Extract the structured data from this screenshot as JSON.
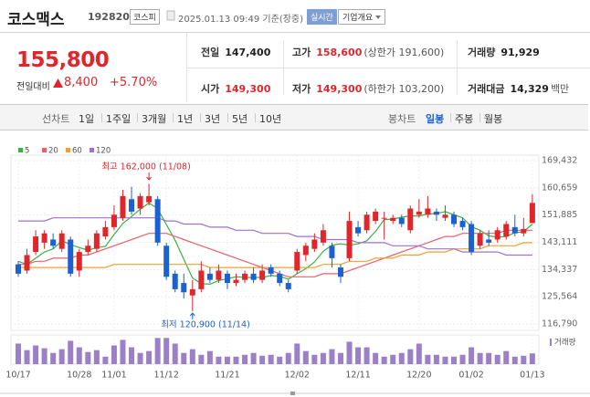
{
  "header": {
    "name": "코스맥스",
    "code": "192820",
    "market": "코스피",
    "timestamp": "2025.01.13 09:49 기준(장중)",
    "realtime": "실시간",
    "company_info": "기업개요"
  },
  "quote": {
    "price": "155,800",
    "change_label": "전일대비",
    "change": "8,400",
    "change_rate": "+5.70%"
  },
  "stats": {
    "rows": [
      [
        {
          "label": "전일",
          "value": "147,400"
        },
        {
          "label": "고가",
          "value": "158,600",
          "note": "(상한가 191,600)",
          "color": "#e0252b"
        },
        {
          "label": "거래량",
          "value": "91,929"
        }
      ],
      [
        {
          "label": "시가",
          "value": "149,300",
          "color": "#e0252b"
        },
        {
          "label": "저가",
          "value": "149,300",
          "note": "(하한가 103,200)",
          "color": "#e0252b"
        },
        {
          "label": "거래대금",
          "value": "14,329",
          "note": "백만"
        }
      ]
    ]
  },
  "tabs": {
    "line_chart": "선차트",
    "line_periods": [
      "1일",
      "1주일",
      "3개월",
      "1년",
      "3년",
      "5년",
      "10년"
    ],
    "candle_chart": "봉차트",
    "candle_periods": [
      "일봉",
      "주봉",
      "월봉"
    ],
    "active": "일봉"
  },
  "chart_data": {
    "type": "candlestick",
    "categories": [
      "10/17",
      null,
      null,
      null,
      null,
      null,
      null,
      "10/28",
      null,
      null,
      null,
      "11/01",
      null,
      null,
      null,
      null,
      null,
      "11/12",
      null,
      null,
      null,
      null,
      null,
      null,
      "11/21",
      null,
      null,
      null,
      null,
      null,
      null,
      null,
      "12/02",
      null,
      null,
      null,
      null,
      null,
      null,
      "12/11",
      null,
      null,
      null,
      null,
      null,
      null,
      "12/20",
      null,
      null,
      null,
      null,
      null,
      "01/02",
      null,
      null,
      null,
      null,
      null,
      null,
      "01/13"
    ],
    "open": [
      136000,
      134000,
      140000,
      143000,
      144000,
      141000,
      144000,
      134000,
      140000,
      141000,
      145000,
      148000,
      151000,
      157000,
      154000,
      156000,
      157000,
      142000,
      133000,
      130000,
      126000,
      128000,
      133000,
      131000,
      133000,
      130000,
      131000,
      133000,
      131000,
      135000,
      133000,
      130000,
      134000,
      139000,
      141000,
      143000,
      142000,
      135000,
      138000,
      148000,
      147000,
      150000,
      151000,
      150000,
      151000,
      147000,
      152000,
      152000,
      153000,
      151000,
      152000,
      150000,
      149000,
      142000,
      144000,
      144000,
      145000,
      148000,
      146000,
      149300
    ],
    "high": [
      137000,
      141000,
      147000,
      147000,
      146000,
      147000,
      145000,
      141000,
      144000,
      147000,
      150000,
      155000,
      160000,
      161000,
      159000,
      162000,
      158000,
      143000,
      134000,
      133000,
      131000,
      137000,
      135000,
      136000,
      134000,
      133000,
      134000,
      135000,
      136000,
      136000,
      134000,
      131000,
      141000,
      143000,
      146000,
      149000,
      143000,
      136000,
      153000,
      150000,
      153000,
      154000,
      153000,
      152000,
      152000,
      155000,
      157000,
      158000,
      154000,
      155000,
      153000,
      151000,
      150000,
      147000,
      147000,
      148000,
      150000,
      152000,
      151000,
      158600
    ],
    "low": [
      132000,
      133000,
      139000,
      141000,
      141000,
      140000,
      132000,
      132000,
      139000,
      140000,
      144000,
      147000,
      150000,
      152000,
      152000,
      155000,
      142000,
      131000,
      127000,
      125000,
      120900,
      127000,
      130000,
      130000,
      128000,
      129000,
      130000,
      130000,
      130000,
      132000,
      129000,
      127000,
      133000,
      137000,
      140000,
      142000,
      135000,
      130000,
      137000,
      145000,
      146000,
      149000,
      144000,
      149000,
      148000,
      146000,
      151000,
      151000,
      150000,
      150000,
      148000,
      147000,
      139000,
      141000,
      142000,
      143000,
      144000,
      145000,
      145000,
      149300
    ],
    "close": [
      133000,
      139000,
      145000,
      146000,
      142000,
      146000,
      133000,
      140000,
      142000,
      146000,
      148000,
      152000,
      158000,
      153000,
      158000,
      158000,
      143000,
      132000,
      128000,
      127000,
      128000,
      134000,
      131000,
      134000,
      130000,
      131000,
      133000,
      131000,
      134000,
      133000,
      130000,
      128000,
      140000,
      142000,
      144000,
      147000,
      138000,
      132000,
      150000,
      146000,
      152000,
      153000,
      151000,
      151000,
      149000,
      154000,
      153000,
      154000,
      152000,
      152000,
      149000,
      148000,
      140000,
      146000,
      143000,
      147000,
      149000,
      146000,
      147400,
      155800
    ],
    "up_color": "#e0252b",
    "down_color": "#1b61d1",
    "ylim": [
      116790,
      169432
    ],
    "yticks": [
      {
        "value": 116790,
        "label": "116,790"
      },
      {
        "value": 125564,
        "label": "125,564"
      },
      {
        "value": 134337,
        "label": "134,337"
      },
      {
        "value": 143111,
        "label": "143,111"
      },
      {
        "value": 151885,
        "label": "151,885"
      },
      {
        "value": 160659,
        "label": "160,659"
      },
      {
        "value": 169432,
        "label": "169,432"
      }
    ],
    "grid": true,
    "moving_averages": [
      {
        "name": "5",
        "color": "#3cb043",
        "values": [
          137000,
          136000,
          138000,
          140000,
          141000,
          143600,
          142400,
          141400,
          140600,
          141400,
          141800,
          145600,
          149200,
          151400,
          153800,
          155800,
          154000,
          148800,
          143800,
          137600,
          131600,
          129800,
          129600,
          130800,
          131400,
          132000,
          131800,
          131800,
          131800,
          132400,
          132200,
          131200,
          133000,
          134600,
          136800,
          140200,
          142200,
          142600,
          142200,
          142600,
          143600,
          146600,
          150400,
          150600,
          151200,
          151600,
          151600,
          152200,
          152400,
          153000,
          152000,
          151000,
          148200,
          147000,
          145200,
          144800,
          145000,
          146200,
          146500,
          149000
        ]
      },
      {
        "name": "20",
        "color": "#e8606a",
        "values": [
          136000,
          136000,
          137000,
          137000,
          138000,
          138000,
          138000,
          139000,
          139000,
          140000,
          141000,
          142000,
          143000,
          144000,
          145000,
          146000,
          146000,
          146000,
          145000,
          144000,
          143000,
          142000,
          141000,
          140000,
          139000,
          138000,
          137000,
          136000,
          135000,
          134000,
          133000,
          132000,
          132000,
          132000,
          132000,
          133000,
          133000,
          133000,
          134000,
          135000,
          136000,
          137000,
          138000,
          139000,
          140000,
          141000,
          142000,
          143000,
          144000,
          145000,
          145000,
          146000,
          146000,
          146000,
          146000,
          146000,
          147000,
          147000,
          147000,
          147000
        ]
      },
      {
        "name": "60",
        "color": "#f0a030",
        "values": [
          135000,
          135000,
          135000,
          135000,
          135000,
          135000,
          135000,
          135000,
          135000,
          135000,
          135000,
          136000,
          136000,
          136000,
          136000,
          136000,
          136000,
          136000,
          136000,
          136000,
          136000,
          136000,
          135000,
          135000,
          135000,
          135000,
          135000,
          135000,
          135000,
          135000,
          135000,
          135000,
          135000,
          135000,
          135000,
          136000,
          136000,
          136000,
          137000,
          137000,
          137000,
          138000,
          138000,
          138000,
          139000,
          139000,
          139000,
          140000,
          140000,
          140000,
          141000,
          141000,
          141000,
          141000,
          142000,
          142000,
          142000,
          142000,
          143000,
          143000
        ]
      },
      {
        "name": "120",
        "color": "#a070d0",
        "values": [
          150000,
          150000,
          150000,
          150000,
          151000,
          151000,
          151000,
          151000,
          151000,
          151000,
          151000,
          151000,
          151000,
          151000,
          151000,
          151000,
          151000,
          150000,
          150000,
          149000,
          149000,
          149000,
          148000,
          148000,
          148000,
          147000,
          147000,
          147000,
          146000,
          146000,
          146000,
          146000,
          145000,
          145000,
          145000,
          144000,
          144000,
          144000,
          144000,
          143000,
          143000,
          143000,
          143000,
          142000,
          142000,
          142000,
          142000,
          141000,
          141000,
          141000,
          141000,
          140000,
          140000,
          140000,
          140000,
          140000,
          139000,
          139000,
          139000,
          139000
        ]
      }
    ],
    "volume": {
      "name": "거래량",
      "color": "#9b80c8",
      "ylim": [
        0,
        250000
      ],
      "values": [
        176000,
        120000,
        160000,
        136000,
        96000,
        128000,
        200000,
        144000,
        104000,
        120000,
        64000,
        160000,
        208000,
        144000,
        96000,
        112000,
        224000,
        224000,
        176000,
        96000,
        128000,
        80000,
        112000,
        64000,
        64000,
        64000,
        80000,
        96000,
        72000,
        80000,
        64000,
        96000,
        176000,
        112000,
        80000,
        96000,
        128000,
        96000,
        192000,
        144000,
        144000,
        96000,
        64000,
        80000,
        96000,
        128000,
        176000,
        80000,
        80000,
        64000,
        64000,
        80000,
        144000,
        96000,
        96000,
        80000,
        112000,
        64000,
        72000,
        91929
      ]
    },
    "annotations": [
      {
        "text": "최고 162,000 (11/08)",
        "color": "#e0252b"
      },
      {
        "text": "최저 120,900 (11/14)",
        "color": "#1b61d1"
      }
    ]
  }
}
